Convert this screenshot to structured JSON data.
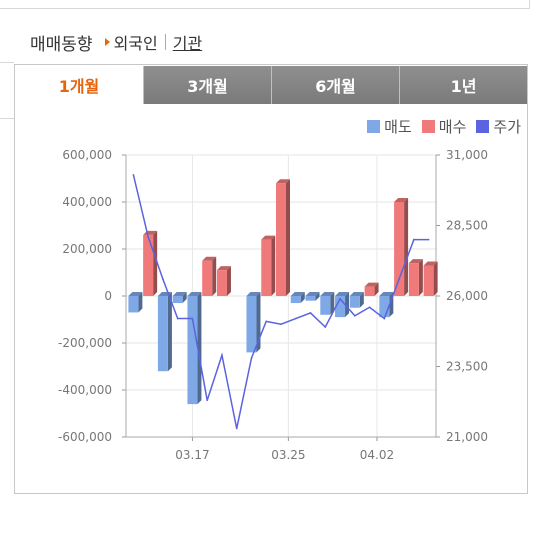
{
  "header": {
    "title": "매매동향",
    "link_foreign": "외국인",
    "link_institution": "기관"
  },
  "tabs": [
    {
      "label": "1개월",
      "active": true
    },
    {
      "label": "3개월",
      "active": false
    },
    {
      "label": "6개월",
      "active": false
    },
    {
      "label": "1년",
      "active": false
    }
  ],
  "colors": {
    "sell": "#7fa9e6",
    "buy": "#f07a7a",
    "price": "#5b63e0",
    "accent": "#e8650f"
  },
  "chart_data": {
    "type": "bar",
    "legend_position": "top-right",
    "legend": [
      {
        "label": "매도",
        "color": "#7fa9e6"
      },
      {
        "label": "매수",
        "color": "#f07a7a"
      },
      {
        "label": "주가",
        "color": "#5b63e0"
      }
    ],
    "x_ticks": [
      {
        "label": "03.17",
        "index": 4.5
      },
      {
        "label": "03.25",
        "index": 11
      },
      {
        "label": "04.02",
        "index": 17
      }
    ],
    "y_left": {
      "ticks": [
        "600,000",
        "400,000",
        "200,000",
        "0",
        "-200,000",
        "-400,000",
        "-600,000"
      ],
      "values": [
        600000,
        400000,
        200000,
        0,
        -200000,
        -400000,
        -600000
      ],
      "ylim": [
        -600000,
        600000
      ]
    },
    "y_right": {
      "ticks": [
        "31,000",
        "28,500",
        "26,000",
        "23,500",
        "21,000"
      ],
      "values": [
        31000,
        28500,
        26000,
        23500,
        21000
      ],
      "ylim": [
        21000,
        31000
      ]
    },
    "grid": true,
    "series": [
      {
        "name": "매도",
        "type": "bar",
        "values": [
          -70000,
          0,
          -320000,
          -30000,
          -460000,
          0,
          0,
          0,
          -240000,
          0,
          0,
          -30000,
          -20000,
          -80000,
          -90000,
          -50000,
          0,
          -90000,
          0,
          0,
          0
        ]
      },
      {
        "name": "매수",
        "type": "bar",
        "values": [
          0,
          260000,
          0,
          0,
          0,
          150000,
          110000,
          0,
          0,
          240000,
          480000,
          0,
          0,
          0,
          0,
          0,
          40000,
          0,
          400000,
          140000,
          130000
        ]
      },
      {
        "name": "주가",
        "type": "line",
        "values": [
          30300,
          28100,
          26600,
          25200,
          25200,
          22300,
          23900,
          21300,
          23800,
          25100,
          25000,
          25200,
          25400,
          24900,
          25900,
          25300,
          25600,
          25200,
          26600,
          28000,
          28000
        ]
      }
    ]
  }
}
